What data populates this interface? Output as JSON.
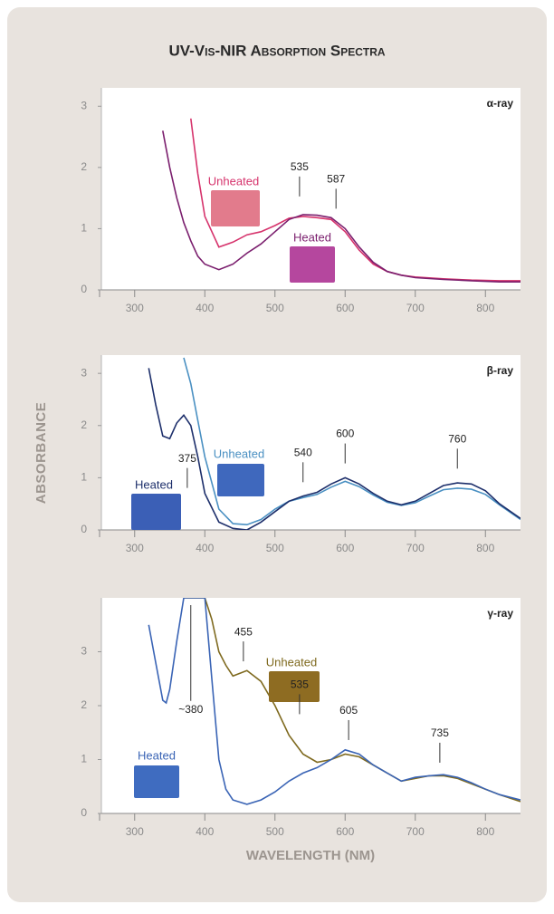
{
  "title": "UV-Vis-NIR Absorption Spectra",
  "ylabel": "Absorbance",
  "xlabel": "Wavelength (nm)",
  "chart_data": [
    {
      "type": "line",
      "label": "α-ray",
      "xlim": [
        250,
        850
      ],
      "xticks": [
        300,
        400,
        500,
        600,
        700,
        800
      ],
      "ylim": [
        0,
        3.3
      ],
      "yticks": [
        0,
        1,
        2,
        3
      ],
      "x": [
        340,
        350,
        360,
        370,
        380,
        390,
        400,
        420,
        440,
        460,
        480,
        500,
        520,
        540,
        560,
        580,
        600,
        620,
        640,
        660,
        680,
        700,
        740,
        780,
        820,
        850
      ],
      "series": [
        {
          "name": "Unheated",
          "color": "#d6336c",
          "values": [
            null,
            null,
            null,
            null,
            2.8,
            1.9,
            1.2,
            0.7,
            0.78,
            0.9,
            0.95,
            1.05,
            1.17,
            1.2,
            1.18,
            1.15,
            0.95,
            0.65,
            0.42,
            0.3,
            0.24,
            0.21,
            0.18,
            0.16,
            0.15,
            0.15
          ]
        },
        {
          "name": "Heated",
          "color": "#7b1f6e",
          "values": [
            2.6,
            2.0,
            1.5,
            1.1,
            0.8,
            0.55,
            0.42,
            0.33,
            0.42,
            0.6,
            0.75,
            0.95,
            1.15,
            1.23,
            1.22,
            1.18,
            1.0,
            0.7,
            0.45,
            0.3,
            0.24,
            0.2,
            0.17,
            0.15,
            0.13,
            0.13
          ]
        }
      ],
      "annotations": [
        {
          "text": "535",
          "x": 535,
          "y": 2.0
        },
        {
          "text": "587",
          "x": 587,
          "y": 1.8
        }
      ]
    },
    {
      "type": "line",
      "label": "β-ray",
      "xlim": [
        250,
        850
      ],
      "xticks": [
        300,
        400,
        500,
        600,
        700,
        800
      ],
      "ylim": [
        0,
        3.35
      ],
      "yticks": [
        0,
        1,
        2,
        3
      ],
      "x": [
        320,
        330,
        340,
        350,
        360,
        370,
        380,
        390,
        400,
        420,
        440,
        460,
        480,
        500,
        520,
        540,
        560,
        580,
        600,
        620,
        640,
        660,
        680,
        700,
        720,
        740,
        760,
        780,
        800,
        820,
        850
      ],
      "series": [
        {
          "name": "Unheated",
          "color": "#4a90c2",
          "values": [
            null,
            null,
            null,
            null,
            null,
            3.3,
            2.8,
            2.1,
            1.4,
            0.4,
            0.12,
            0.1,
            0.2,
            0.4,
            0.55,
            0.62,
            0.68,
            0.82,
            0.93,
            0.83,
            0.67,
            0.53,
            0.47,
            0.52,
            0.65,
            0.77,
            0.8,
            0.78,
            0.68,
            0.48,
            0.2
          ]
        },
        {
          "name": "Heated",
          "color": "#1d2f6b",
          "values": [
            3.1,
            2.4,
            1.8,
            1.75,
            2.05,
            2.2,
            2.0,
            1.4,
            0.7,
            0.15,
            0.03,
            0.0,
            0.15,
            0.35,
            0.55,
            0.65,
            0.72,
            0.88,
            1.0,
            0.88,
            0.7,
            0.55,
            0.48,
            0.55,
            0.7,
            0.85,
            0.9,
            0.88,
            0.75,
            0.5,
            0.22
          ]
        }
      ],
      "annotations": [
        {
          "text": "375",
          "x": 375,
          "y": 1.36
        },
        {
          "text": "540",
          "x": 540,
          "y": 1.47
        },
        {
          "text": "600",
          "x": 600,
          "y": 1.83
        },
        {
          "text": "760",
          "x": 760,
          "y": 1.73
        }
      ]
    },
    {
      "type": "line",
      "label": "γ-ray",
      "xlim": [
        250,
        850
      ],
      "xticks": [
        300,
        400,
        500,
        600,
        700,
        800
      ],
      "ylim": [
        0,
        4
      ],
      "yticks": [
        0,
        1,
        2,
        3
      ],
      "x": [
        320,
        330,
        340,
        345,
        350,
        360,
        370,
        380,
        390,
        400,
        410,
        420,
        430,
        440,
        460,
        480,
        500,
        520,
        540,
        560,
        580,
        600,
        620,
        640,
        660,
        680,
        700,
        720,
        740,
        760,
        780,
        800,
        820,
        850
      ],
      "series": [
        {
          "name": "Unheated",
          "color": "#7f6a1f",
          "values": [
            null,
            null,
            null,
            null,
            null,
            null,
            4,
            4,
            4,
            4,
            3.6,
            3.0,
            2.75,
            2.55,
            2.65,
            2.45,
            2.0,
            1.45,
            1.1,
            0.95,
            1.0,
            1.1,
            1.05,
            0.9,
            0.75,
            0.6,
            0.65,
            0.7,
            0.7,
            0.65,
            0.55,
            0.45,
            0.35,
            0.22
          ]
        },
        {
          "name": "Heated",
          "color": "#3a64b5",
          "values": [
            3.5,
            2.8,
            2.1,
            2.05,
            2.3,
            3.2,
            4,
            4,
            4,
            4,
            2.5,
            1.0,
            0.45,
            0.25,
            0.17,
            0.25,
            0.4,
            0.6,
            0.75,
            0.85,
            1.0,
            1.18,
            1.1,
            0.9,
            0.75,
            0.6,
            0.67,
            0.7,
            0.72,
            0.67,
            0.57,
            0.45,
            0.35,
            0.25
          ]
        }
      ],
      "annotations": [
        {
          "text": "~380",
          "x": 380,
          "y": 1.92
        },
        {
          "text": "455",
          "x": 455,
          "y": 3.36
        },
        {
          "text": "535",
          "x": 535,
          "y": 2.38
        },
        {
          "text": "605",
          "x": 605,
          "y": 1.9
        },
        {
          "text": "735",
          "x": 735,
          "y": 1.48
        }
      ]
    }
  ]
}
